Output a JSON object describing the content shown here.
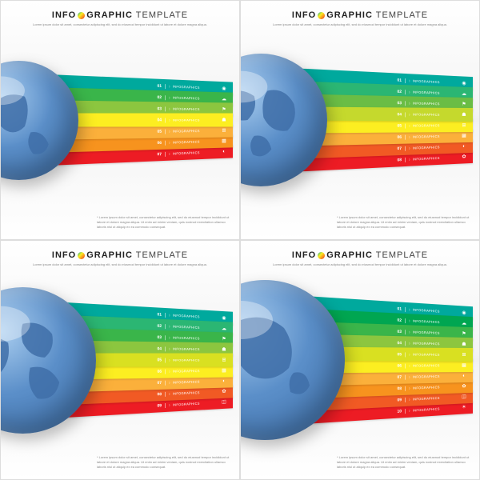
{
  "title_prefix": "INFO",
  "title_suffix": "GRAPHIC",
  "title_word2": "TEMPLATE",
  "subtitle": "Lorem ipsum dolor sit amet, consectetur adipiscing elit, sed do eiusmod tempor incididunt ut labore et dolore magna aliqua.",
  "footer": "* Lorem ipsum dolor sit amet, consectetur adipiscing elit, sed do eiusmod tempor incididunt ut labore et dolore magna aliqua. Ut enim ad minim veniam, quis nostrud exercitation ullamco laboris nisi ut aliquip ex ea commodo consequat.",
  "band_label": "INFOGRAPHICS",
  "globe_ocean": "#5b8fc9",
  "globe_land": "#3f6fa8",
  "dot_gradient": "linear-gradient(135deg,#00a99d 0%,#fcee21 40%,#f7931e 70%,#ed1c24 100%)",
  "icons": [
    "◉",
    "☁",
    "⚑",
    "☗",
    "⊞",
    "▦",
    "◐",
    "✿",
    "◫",
    "☀"
  ],
  "panels": [
    {
      "count": 7,
      "colors": [
        "#00a99d",
        "#3ab54a",
        "#8cc63f",
        "#fcee21",
        "#fbb03b",
        "#f7931e",
        "#ed1c24"
      ]
    },
    {
      "count": 8,
      "colors": [
        "#00a99d",
        "#2bb673",
        "#6abd45",
        "#c5d92d",
        "#fcee21",
        "#fbb03b",
        "#f15a24",
        "#ed1c24"
      ]
    },
    {
      "count": 9,
      "colors": [
        "#00a99d",
        "#2bb673",
        "#3ab54a",
        "#8cc63f",
        "#d9e021",
        "#fcee21",
        "#fbb03b",
        "#f15a24",
        "#ed1c24"
      ]
    },
    {
      "count": 10,
      "colors": [
        "#00a99d",
        "#00a651",
        "#3ab54a",
        "#8cc63f",
        "#d9e021",
        "#fcee21",
        "#fbb03b",
        "#f7931e",
        "#f15a24",
        "#ed1c24"
      ]
    }
  ],
  "globe_views": [
    "M30,35 Q40,25 55,30 Q60,40 55,55 Q45,65 35,55 Q25,45 30,35 Z M60,60 Q70,58 75,70 Q72,80 62,78 Q55,70 60,60 Z M20,65 Q25,62 28,70 Q24,76 18,72 Q16,67 20,65 Z",
    "M25,30 Q35,25 45,32 Q48,42 40,50 Q30,52 25,42 Q22,35 25,30 Z M55,28 Q68,25 75,38 Q78,50 70,58 Q58,60 52,48 Q50,35 55,28 Z M45,62 Q55,60 58,72 Q52,80 44,76 Q40,68 45,62 Z",
    "M18,40 Q28,30 40,38 Q42,50 35,58 Q25,60 18,50 Q15,44 18,40 Z M50,25 Q62,22 70,32 Q72,42 65,48 Q55,48 50,38 Q48,30 50,25 Z M55,55 Q68,52 75,65 Q72,78 60,76 Q52,68 55,55 Z M25,68 Q32,66 34,74 Q30,80 24,76 Q22,70 25,68 Z",
    "M35,25 Q50,20 62,30 Q70,42 65,55 Q55,65 42,60 Q30,52 30,38 Q30,30 35,25 Z M68,58 Q76,56 78,66 Q74,74 66,70 Q64,62 68,58 Z M22,50 Q28,48 30,56 Q26,62 20,58 Q18,52 22,50 Z"
  ]
}
